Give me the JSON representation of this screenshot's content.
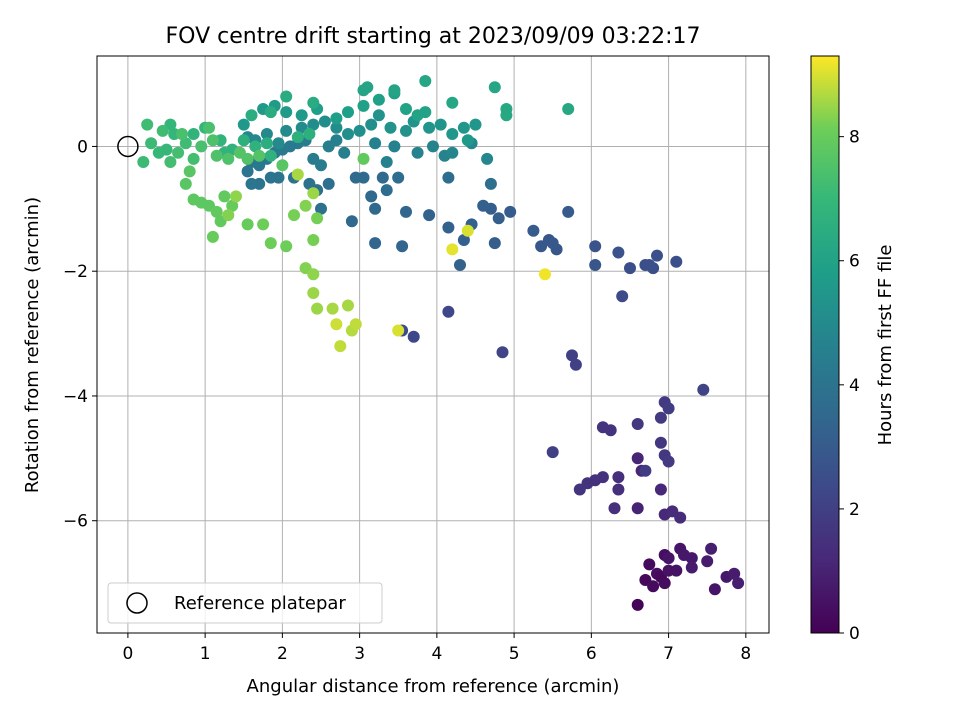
{
  "chart_data": {
    "type": "scatter",
    "title": "FOV centre drift starting at 2023/09/09 03:22:17",
    "xlabel": "Angular distance from reference (arcmin)",
    "ylabel": "Rotation from reference (arcmin)",
    "xlim": [
      -0.4,
      8.3
    ],
    "ylim": [
      -7.8,
      1.45
    ],
    "xticks": [
      0,
      1,
      2,
      3,
      4,
      5,
      6,
      7,
      8
    ],
    "yticks": [
      -6,
      -4,
      -2,
      0
    ],
    "xtick_labels": [
      "0",
      "1",
      "2",
      "3",
      "4",
      "5",
      "6",
      "7",
      "8"
    ],
    "ytick_labels": [
      "−6",
      "−4",
      "−2",
      "0"
    ],
    "grid": true,
    "colormap": "viridis",
    "colorbar": {
      "label": "Hours from first FF file",
      "range": [
        0,
        9.3
      ],
      "ticks": [
        0,
        2,
        4,
        6,
        8
      ],
      "tick_labels": [
        "0",
        "2",
        "4",
        "6",
        "8"
      ]
    },
    "legend": {
      "position": "lower-left",
      "entries": [
        "Reference platepar"
      ]
    },
    "reference_point": {
      "x": 0,
      "y": 0,
      "label": "Reference platepar"
    },
    "series": [
      {
        "columns": [
          "x",
          "y",
          "hours"
        ],
        "points": [
          [
            6.6,
            -7.35,
            0.1
          ],
          [
            6.7,
            -6.95,
            0.2
          ],
          [
            6.75,
            -6.7,
            0.3
          ],
          [
            6.8,
            -7.05,
            0.3
          ],
          [
            6.85,
            -6.85,
            0.4
          ],
          [
            6.9,
            -6.9,
            0.2
          ],
          [
            6.95,
            -7.0,
            0.3
          ],
          [
            6.95,
            -6.55,
            0.4
          ],
          [
            7.0,
            -6.8,
            0.5
          ],
          [
            7.0,
            -6.6,
            0.6
          ],
          [
            7.1,
            -6.8,
            0.5
          ],
          [
            7.15,
            -6.45,
            0.6
          ],
          [
            7.2,
            -6.55,
            0.7
          ],
          [
            7.3,
            -6.6,
            0.7
          ],
          [
            7.3,
            -6.75,
            0.8
          ],
          [
            7.5,
            -6.65,
            0.8
          ],
          [
            7.55,
            -6.45,
            0.9
          ],
          [
            7.6,
            -7.1,
            0.6
          ],
          [
            7.75,
            -6.9,
            0.7
          ],
          [
            7.85,
            -6.85,
            0.8
          ],
          [
            7.9,
            -7.0,
            0.9
          ],
          [
            6.6,
            -5.8,
            1.0
          ],
          [
            6.65,
            -5.2,
            1.1
          ],
          [
            6.6,
            -5.0,
            1.1
          ],
          [
            6.9,
            -5.5,
            1.2
          ],
          [
            6.95,
            -5.9,
            1.2
          ],
          [
            7.05,
            -5.85,
            1.3
          ],
          [
            7.15,
            -5.95,
            1.3
          ],
          [
            6.35,
            -5.5,
            1.4
          ],
          [
            6.35,
            -5.3,
            1.4
          ],
          [
            6.3,
            -5.8,
            1.4
          ],
          [
            6.15,
            -5.3,
            1.5
          ],
          [
            6.05,
            -5.35,
            1.5
          ],
          [
            5.95,
            -5.4,
            1.5
          ],
          [
            5.85,
            -5.5,
            1.6
          ],
          [
            6.15,
            -4.5,
            1.6
          ],
          [
            6.25,
            -4.55,
            1.6
          ],
          [
            6.6,
            -4.45,
            1.7
          ],
          [
            6.9,
            -4.75,
            1.7
          ],
          [
            6.95,
            -4.95,
            1.7
          ],
          [
            7.0,
            -5.05,
            1.8
          ],
          [
            6.9,
            -4.35,
            1.8
          ],
          [
            6.95,
            -4.1,
            1.8
          ],
          [
            7.0,
            -4.2,
            1.9
          ],
          [
            6.7,
            -5.2,
            1.9
          ],
          [
            5.5,
            -4.9,
            2.0
          ],
          [
            5.75,
            -3.35,
            2.0
          ],
          [
            5.8,
            -3.5,
            2.0
          ],
          [
            7.45,
            -3.9,
            2.1
          ],
          [
            4.85,
            -3.3,
            2.2
          ],
          [
            4.15,
            -2.65,
            2.3
          ],
          [
            3.7,
            -3.05,
            2.3
          ],
          [
            3.55,
            -2.95,
            2.4
          ],
          [
            6.4,
            -2.4,
            2.4
          ],
          [
            6.5,
            -1.95,
            2.5
          ],
          [
            6.7,
            -1.9,
            2.5
          ],
          [
            6.8,
            -1.95,
            2.5
          ],
          [
            6.85,
            -1.75,
            2.6
          ],
          [
            6.75,
            -1.9,
            2.6
          ],
          [
            7.1,
            -1.85,
            2.6
          ],
          [
            6.35,
            -1.7,
            2.7
          ],
          [
            6.05,
            -1.6,
            2.7
          ],
          [
            6.05,
            -1.9,
            2.8
          ],
          [
            5.55,
            -1.65,
            2.8
          ],
          [
            5.45,
            -1.5,
            2.8
          ],
          [
            5.35,
            -1.6,
            2.9
          ],
          [
            5.5,
            -1.55,
            2.9
          ],
          [
            5.25,
            -1.35,
            3.0
          ],
          [
            5.7,
            -1.05,
            3.0
          ],
          [
            4.95,
            -1.05,
            3.0
          ],
          [
            4.75,
            -1.55,
            3.1
          ],
          [
            4.7,
            -1.0,
            3.1
          ],
          [
            4.8,
            -1.15,
            3.1
          ],
          [
            4.6,
            -0.95,
            3.2
          ],
          [
            4.45,
            -1.25,
            3.2
          ],
          [
            4.35,
            -1.5,
            3.2
          ],
          [
            4.3,
            -1.9,
            3.3
          ],
          [
            4.15,
            -1.3,
            3.3
          ],
          [
            3.9,
            -1.1,
            3.3
          ],
          [
            3.6,
            -1.05,
            3.4
          ],
          [
            3.55,
            -1.6,
            3.4
          ],
          [
            3.2,
            -1.55,
            3.4
          ],
          [
            2.9,
            -1.2,
            3.5
          ],
          [
            3.2,
            -1.0,
            3.5
          ],
          [
            3.15,
            -0.8,
            3.5
          ],
          [
            3.05,
            -0.5,
            3.6
          ],
          [
            2.95,
            -0.5,
            3.6
          ],
          [
            3.3,
            -0.5,
            3.6
          ],
          [
            3.5,
            -0.5,
            3.7
          ],
          [
            3.35,
            -0.7,
            3.7
          ],
          [
            4.15,
            -0.5,
            3.7
          ],
          [
            4.7,
            -0.6,
            3.8
          ],
          [
            2.6,
            -0.6,
            3.8
          ],
          [
            2.45,
            -0.7,
            3.8
          ],
          [
            2.5,
            -1.0,
            3.9
          ],
          [
            2.35,
            -0.6,
            3.9
          ],
          [
            2.15,
            -0.5,
            3.9
          ],
          [
            1.95,
            -0.5,
            4.0
          ],
          [
            1.85,
            -0.5,
            4.0
          ],
          [
            1.7,
            -0.6,
            4.0
          ],
          [
            1.6,
            -0.6,
            4.1
          ],
          [
            1.55,
            -0.4,
            4.1
          ],
          [
            1.6,
            -0.25,
            4.1
          ],
          [
            1.7,
            -0.3,
            4.2
          ],
          [
            1.8,
            -0.2,
            4.2
          ],
          [
            1.9,
            -0.1,
            4.2
          ],
          [
            2.0,
            -0.05,
            4.3
          ],
          [
            2.1,
            0.0,
            4.3
          ],
          [
            2.2,
            0.05,
            4.3
          ],
          [
            2.3,
            0.1,
            4.4
          ],
          [
            2.4,
            -0.2,
            4.4
          ],
          [
            2.5,
            -0.3,
            4.4
          ],
          [
            2.6,
            0.0,
            4.5
          ],
          [
            2.7,
            0.1,
            4.5
          ],
          [
            2.8,
            -0.1,
            4.5
          ],
          [
            3.2,
            0.05,
            4.6
          ],
          [
            3.35,
            -0.25,
            4.6
          ],
          [
            3.45,
            0.0,
            4.6
          ],
          [
            3.75,
            -0.1,
            4.7
          ],
          [
            3.95,
            0.0,
            4.7
          ],
          [
            4.1,
            -0.15,
            4.7
          ],
          [
            4.2,
            -0.1,
            4.8
          ],
          [
            4.45,
            0.05,
            4.8
          ],
          [
            4.65,
            -0.2,
            4.8
          ],
          [
            1.55,
            0.15,
            4.9
          ],
          [
            1.65,
            0.1,
            4.9
          ],
          [
            1.8,
            0.2,
            4.9
          ],
          [
            1.95,
            0.05,
            5.0
          ],
          [
            2.05,
            0.25,
            5.0
          ],
          [
            2.25,
            0.3,
            5.0
          ],
          [
            2.4,
            0.35,
            5.1
          ],
          [
            2.55,
            0.4,
            5.1
          ],
          [
            2.7,
            0.3,
            5.1
          ],
          [
            2.85,
            0.2,
            5.2
          ],
          [
            3.0,
            0.25,
            5.2
          ],
          [
            3.15,
            0.35,
            5.2
          ],
          [
            3.25,
            0.5,
            5.3
          ],
          [
            3.4,
            0.3,
            5.3
          ],
          [
            3.6,
            0.25,
            5.3
          ],
          [
            3.7,
            0.4,
            5.4
          ],
          [
            3.9,
            0.3,
            5.4
          ],
          [
            4.05,
            0.35,
            5.4
          ],
          [
            4.2,
            0.2,
            5.5
          ],
          [
            4.35,
            0.3,
            5.5
          ],
          [
            4.5,
            0.35,
            5.5
          ],
          [
            4.4,
            0.1,
            5.6
          ],
          [
            1.5,
            0.35,
            5.6
          ],
          [
            1.75,
            0.6,
            5.6
          ],
          [
            1.9,
            0.65,
            5.7
          ],
          [
            2.05,
            0.55,
            5.7
          ],
          [
            2.25,
            0.5,
            5.7
          ],
          [
            2.45,
            0.6,
            5.8
          ],
          [
            2.7,
            0.45,
            5.8
          ],
          [
            2.85,
            0.55,
            5.8
          ],
          [
            3.05,
            0.65,
            5.9
          ],
          [
            3.25,
            0.75,
            5.9
          ],
          [
            3.45,
            0.85,
            5.9
          ],
          [
            3.6,
            0.6,
            6.0
          ],
          [
            3.75,
            0.5,
            6.0
          ],
          [
            3.85,
            0.55,
            6.0
          ],
          [
            3.05,
            0.9,
            6.1
          ],
          [
            3.1,
            0.95,
            6.1
          ],
          [
            3.45,
            0.9,
            6.1
          ],
          [
            3.85,
            1.05,
            6.2
          ],
          [
            4.2,
            0.7,
            6.2
          ],
          [
            4.75,
            0.95,
            6.2
          ],
          [
            4.9,
            0.6,
            6.3
          ],
          [
            5.7,
            0.6,
            6.3
          ],
          [
            4.9,
            0.5,
            6.3
          ],
          [
            1.85,
            0.55,
            6.4
          ],
          [
            2.05,
            0.8,
            6.4
          ],
          [
            2.4,
            0.7,
            6.4
          ],
          [
            1.6,
            0.5,
            6.5
          ],
          [
            1.8,
            0.05,
            6.5
          ],
          [
            2.2,
            0.15,
            6.6
          ],
          [
            2.35,
            0.2,
            6.6
          ],
          [
            1.5,
            0.1,
            6.6
          ],
          [
            1.35,
            -0.05,
            6.7
          ],
          [
            1.65,
            0.0,
            6.7
          ],
          [
            1.85,
            -0.15,
            6.7
          ],
          [
            1.2,
            0.1,
            6.8
          ],
          [
            1.25,
            -0.1,
            6.8
          ],
          [
            0.85,
            0.2,
            6.8
          ],
          [
            1.0,
            0.3,
            6.9
          ],
          [
            0.6,
            0.2,
            6.9
          ],
          [
            0.55,
            0.35,
            6.9
          ],
          [
            0.4,
            -0.1,
            7.0
          ],
          [
            0.5,
            -0.05,
            7.0
          ],
          [
            0.3,
            0.05,
            7.1
          ],
          [
            0.2,
            -0.25,
            7.1
          ],
          [
            0.25,
            0.35,
            7.2
          ],
          [
            0.45,
            0.25,
            7.2
          ],
          [
            0.75,
            0.05,
            7.2
          ],
          [
            0.85,
            -0.2,
            7.3
          ],
          [
            0.65,
            -0.1,
            7.3
          ],
          [
            0.55,
            -0.25,
            7.3
          ],
          [
            0.7,
            0.2,
            7.4
          ],
          [
            0.95,
            0.0,
            7.4
          ],
          [
            1.05,
            0.3,
            7.4
          ],
          [
            1.1,
            0.1,
            7.5
          ],
          [
            1.15,
            -0.15,
            7.5
          ],
          [
            1.3,
            -0.2,
            7.5
          ],
          [
            1.45,
            -0.1,
            7.6
          ],
          [
            1.55,
            -0.2,
            7.6
          ],
          [
            1.7,
            -0.15,
            7.6
          ],
          [
            2.0,
            -0.3,
            7.7
          ],
          [
            0.8,
            -0.4,
            7.7
          ],
          [
            0.75,
            -0.6,
            7.7
          ],
          [
            0.85,
            -0.85,
            7.8
          ],
          [
            0.95,
            -0.9,
            7.8
          ],
          [
            1.05,
            -0.95,
            7.8
          ],
          [
            1.15,
            -1.05,
            7.9
          ],
          [
            1.25,
            -0.8,
            7.9
          ],
          [
            1.2,
            -1.2,
            7.9
          ],
          [
            1.1,
            -1.45,
            8.0
          ],
          [
            1.35,
            -0.95,
            8.0
          ],
          [
            1.55,
            -1.25,
            8.0
          ],
          [
            1.75,
            -1.25,
            8.1
          ],
          [
            1.85,
            -1.55,
            8.1
          ],
          [
            2.05,
            -1.6,
            8.1
          ],
          [
            2.15,
            -1.1,
            8.2
          ],
          [
            2.45,
            -1.15,
            8.2
          ],
          [
            2.4,
            -1.5,
            8.2
          ],
          [
            2.3,
            -0.95,
            8.3
          ],
          [
            2.3,
            -1.95,
            8.3
          ],
          [
            2.4,
            -2.05,
            8.4
          ],
          [
            2.4,
            -2.35,
            8.5
          ],
          [
            2.45,
            -2.6,
            8.5
          ],
          [
            2.65,
            -2.6,
            8.6
          ],
          [
            2.85,
            -2.55,
            8.6
          ],
          [
            2.9,
            -2.95,
            8.7
          ],
          [
            2.95,
            -2.85,
            8.8
          ],
          [
            2.75,
            -3.2,
            8.8
          ],
          [
            2.7,
            -2.85,
            8.9
          ],
          [
            3.5,
            -2.95,
            9.0
          ],
          [
            4.4,
            -1.35,
            9.0
          ],
          [
            4.2,
            -1.65,
            9.1
          ],
          [
            5.4,
            -2.05,
            9.2
          ],
          [
            2.2,
            -0.45,
            8.6
          ],
          [
            3.05,
            -0.2,
            7.9
          ],
          [
            2.4,
            -0.75,
            8.5
          ],
          [
            1.3,
            -1.1,
            8.3
          ],
          [
            1.4,
            -0.8,
            8.4
          ]
        ]
      }
    ]
  }
}
